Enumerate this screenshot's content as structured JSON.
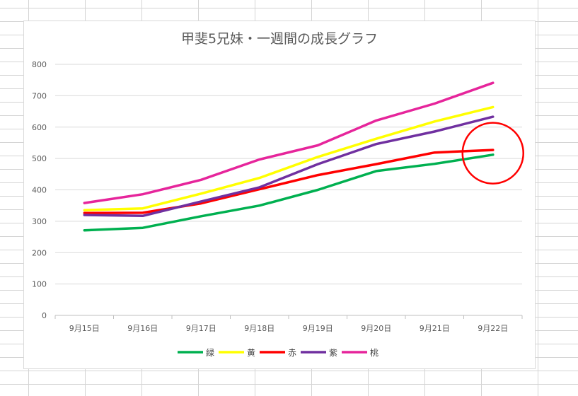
{
  "chart_data": {
    "type": "line",
    "title": "甲斐5兄妹・一週間の成長グラフ",
    "xlabel": "",
    "ylabel": "",
    "categories": [
      "9月15日",
      "9月16日",
      "9月17日",
      "9月18日",
      "9月19日",
      "9月20日",
      "9月21日",
      "9月22日"
    ],
    "ylim": [
      0,
      800
    ],
    "yticks": [
      0,
      100,
      200,
      300,
      400,
      500,
      600,
      700,
      800
    ],
    "grid": "horizontal",
    "legend_position": "bottom",
    "series": [
      {
        "name": "緑",
        "color": "#00b050",
        "values": [
          271,
          279,
          316,
          350,
          400,
          460,
          483,
          512
        ]
      },
      {
        "name": "黄",
        "color": "#ffff00",
        "values": [
          335,
          341,
          388,
          438,
          505,
          563,
          618,
          664
        ]
      },
      {
        "name": "赤",
        "color": "#ff0000",
        "values": [
          326,
          327,
          357,
          402,
          447,
          482,
          519,
          527
        ]
      },
      {
        "name": "紫",
        "color": "#7030a0",
        "values": [
          320,
          317,
          363,
          408,
          482,
          546,
          586,
          633
        ]
      },
      {
        "name": "桃",
        "color": "#e6259b",
        "values": [
          358,
          386,
          432,
          497,
          542,
          621,
          675,
          741
        ]
      }
    ],
    "annotation": {
      "shape": "circle",
      "color": "#ff0000",
      "category": "9月22日",
      "y": 517
    }
  }
}
